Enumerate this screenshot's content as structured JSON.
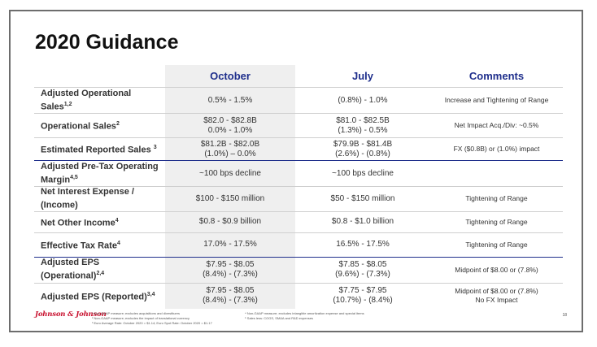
{
  "slide": {
    "title": "2020 Guidance",
    "page_number": "18",
    "logo_text": "Johnson & Johnson"
  },
  "table": {
    "headers": {
      "col0": "",
      "october": "October",
      "july": "July",
      "comments": "Comments"
    },
    "rows": [
      {
        "label": "Adjusted Operational Sales",
        "sup": "1,2",
        "october": [
          "0.5% - 1.5%"
        ],
        "july": [
          "(0.8%) - 1.0%"
        ],
        "comment": [
          "Increase and Tightening of Range"
        ],
        "sep": false
      },
      {
        "label": "Operational Sales",
        "sup": "2",
        "october": [
          "$82.0 - $82.8B",
          "0.0% - 1.0%"
        ],
        "july": [
          "$81.0 - $82.5B",
          "(1.3%) - 0.5%"
        ],
        "comment": [
          "Net Impact Acq./Div: ~0.5%"
        ],
        "sep": false
      },
      {
        "label": "Estimated Reported Sales ",
        "sup": "3",
        "october": [
          "$81.2B - $82.0B",
          "(1.0%) – 0.0%"
        ],
        "july": [
          "$79.9B - $81.4B",
          "(2.6%) - (0.8%)"
        ],
        "comment": [
          "FX ($0.8B) or (1.0%) impact"
        ],
        "sep": false
      },
      {
        "label": "Adjusted Pre-Tax Operating Margin",
        "sup": "4,5",
        "october": [
          "~100 bps decline"
        ],
        "july": [
          "~100 bps decline"
        ],
        "comment": [
          ""
        ],
        "sep": true
      },
      {
        "label": "Net Interest Expense / (Income)",
        "sup": "",
        "october": [
          "$100 - $150 million"
        ],
        "july": [
          "$50 - $150 million"
        ],
        "comment": [
          "Tightening of Range"
        ],
        "sep": false
      },
      {
        "label": "Net Other Income",
        "sup": "4",
        "october": [
          "$0.8 - $0.9 billion"
        ],
        "july": [
          "$0.8 - $1.0 billion"
        ],
        "comment": [
          "Tightening of Range"
        ],
        "sep": false
      },
      {
        "label": "Effective Tax Rate",
        "sup": "4",
        "october": [
          "17.0% - 17.5%"
        ],
        "july": [
          "16.5% - 17.5%"
        ],
        "comment": [
          "Tightening of Range"
        ],
        "sep": false
      },
      {
        "label": "Adjusted EPS (Operational)",
        "sup": "2,4",
        "october": [
          "$7.95 - $8.05",
          "(8.4%) - (7.3%)"
        ],
        "july": [
          "$7.85 - $8.05",
          "(9.6%) - (7.3%)"
        ],
        "comment": [
          "Midpoint of $8.00 or (7.8%)"
        ],
        "sep": true
      },
      {
        "label": "Adjusted EPS (Reported)",
        "sup": "3,4",
        "october": [
          "$7.95 - $8.05",
          "(8.4%) - (7.3%)"
        ],
        "july": [
          "$7.75 - $7.95",
          "(10.7%) - (8.4%)"
        ],
        "comment": [
          "Midpoint of $8.00 or (7.8%)",
          "No FX Impact"
        ],
        "sep": false
      }
    ]
  },
  "footnotes": {
    "left": [
      "¹ Non-GAAP measure; excludes acquisitions and divestitures",
      "² Non-GAAP measure; excludes the impact of translational currency",
      "³ Euro Average Rate: October 2020 = $1.14; Euro Spot Rate: October 2020 = $1.17"
    ],
    "right": [
      "⁴ Non-GAAP measure; excludes intangible amortization expense and special items",
      "⁵ Sales less: COGS, SM&A and R&D expenses"
    ]
  },
  "colors": {
    "header_text": "#1f2f8c",
    "october_column_bg": "#efefef",
    "separator": "#1f2f8c",
    "logo": "#c8102e"
  }
}
